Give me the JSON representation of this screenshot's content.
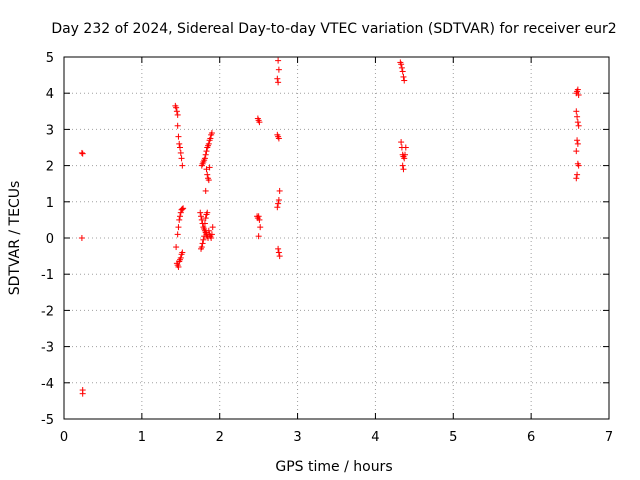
{
  "chart_data": {
    "type": "scatter",
    "title": "Day 232 of 2024, Sidereal Day-to-day VTEC variation (SDTVAR) for receiver eur2",
    "xlabel": "GPS time / hours",
    "ylabel": "SDTVAR / TECUs",
    "xlim": [
      0,
      7
    ],
    "ylim": [
      -5,
      5
    ],
    "xticks": [
      "0",
      "1",
      "2",
      "3",
      "4",
      "5",
      "6",
      "7"
    ],
    "yticks": [
      "-5",
      "-4",
      "-3",
      "-2",
      "-1",
      "0",
      "1",
      "2",
      "3",
      "4",
      "5"
    ],
    "grid": true,
    "marker": "+",
    "color": "#ff0000",
    "series": [
      {
        "name": "SDTVAR",
        "points": [
          [
            0.23,
            2.35
          ],
          [
            0.24,
            2.33
          ],
          [
            0.23,
            0.0
          ],
          [
            0.24,
            -4.2
          ],
          [
            0.24,
            -4.3
          ],
          [
            1.43,
            3.65
          ],
          [
            1.44,
            3.6
          ],
          [
            1.45,
            3.5
          ],
          [
            1.46,
            3.4
          ],
          [
            1.46,
            3.1
          ],
          [
            1.47,
            2.8
          ],
          [
            1.48,
            2.6
          ],
          [
            1.49,
            2.5
          ],
          [
            1.5,
            2.35
          ],
          [
            1.51,
            2.2
          ],
          [
            1.52,
            2.0
          ],
          [
            1.44,
            -0.25
          ],
          [
            1.45,
            -0.7
          ],
          [
            1.46,
            -0.75
          ],
          [
            1.47,
            -0.8
          ],
          [
            1.48,
            -0.65
          ],
          [
            1.49,
            -0.6
          ],
          [
            1.5,
            -0.55
          ],
          [
            1.51,
            -0.45
          ],
          [
            1.52,
            -0.4
          ],
          [
            1.46,
            0.1
          ],
          [
            1.47,
            0.3
          ],
          [
            1.48,
            0.5
          ],
          [
            1.49,
            0.6
          ],
          [
            1.5,
            0.7
          ],
          [
            1.51,
            0.78
          ],
          [
            1.52,
            0.8
          ],
          [
            1.53,
            0.82
          ],
          [
            1.75,
            0.7
          ],
          [
            1.76,
            0.6
          ],
          [
            1.77,
            0.5
          ],
          [
            1.78,
            0.4
          ],
          [
            1.79,
            0.3
          ],
          [
            1.8,
            0.25
          ],
          [
            1.81,
            0.2
          ],
          [
            1.82,
            0.15
          ],
          [
            1.83,
            0.1
          ],
          [
            1.84,
            0.05
          ],
          [
            1.85,
            0.0
          ],
          [
            1.76,
            -0.3
          ],
          [
            1.77,
            -0.25
          ],
          [
            1.78,
            -0.15
          ],
          [
            1.79,
            -0.05
          ],
          [
            1.8,
            0.05
          ],
          [
            1.81,
            0.4
          ],
          [
            1.82,
            0.55
          ],
          [
            1.83,
            0.65
          ],
          [
            1.84,
            0.7
          ],
          [
            1.86,
            0.2
          ],
          [
            1.87,
            0.1
          ],
          [
            1.88,
            0.05
          ],
          [
            1.89,
            0.0
          ],
          [
            1.9,
            0.1
          ],
          [
            1.91,
            0.3
          ],
          [
            1.77,
            2.0
          ],
          [
            1.78,
            2.05
          ],
          [
            1.79,
            2.1
          ],
          [
            1.8,
            2.15
          ],
          [
            1.81,
            2.2
          ],
          [
            1.82,
            2.3
          ],
          [
            1.83,
            2.4
          ],
          [
            1.84,
            2.5
          ],
          [
            1.85,
            2.55
          ],
          [
            1.86,
            2.6
          ],
          [
            1.87,
            2.7
          ],
          [
            1.88,
            2.75
          ],
          [
            1.89,
            2.85
          ],
          [
            1.9,
            2.9
          ],
          [
            1.83,
            1.9
          ],
          [
            1.84,
            1.75
          ],
          [
            1.85,
            1.65
          ],
          [
            1.86,
            1.6
          ],
          [
            1.87,
            1.95
          ],
          [
            1.82,
            1.3
          ],
          [
            2.49,
            3.3
          ],
          [
            2.5,
            3.25
          ],
          [
            2.51,
            3.2
          ],
          [
            2.48,
            0.6
          ],
          [
            2.49,
            0.55
          ],
          [
            2.5,
            0.6
          ],
          [
            2.51,
            0.5
          ],
          [
            2.52,
            0.3
          ],
          [
            2.5,
            0.05
          ],
          [
            2.75,
            4.9
          ],
          [
            2.76,
            4.65
          ],
          [
            2.74,
            4.4
          ],
          [
            2.75,
            4.3
          ],
          [
            2.74,
            2.85
          ],
          [
            2.75,
            2.8
          ],
          [
            2.76,
            2.75
          ],
          [
            2.74,
            0.85
          ],
          [
            2.75,
            0.95
          ],
          [
            2.76,
            1.05
          ],
          [
            2.77,
            1.3
          ],
          [
            2.75,
            -0.3
          ],
          [
            2.76,
            -0.4
          ],
          [
            2.77,
            -0.5
          ],
          [
            4.32,
            4.85
          ],
          [
            4.33,
            4.8
          ],
          [
            4.34,
            4.7
          ],
          [
            4.35,
            4.6
          ],
          [
            4.36,
            4.45
          ],
          [
            4.37,
            4.35
          ],
          [
            4.33,
            2.65
          ],
          [
            4.34,
            2.5
          ],
          [
            4.35,
            2.3
          ],
          [
            4.36,
            2.25
          ],
          [
            4.37,
            2.2
          ],
          [
            4.38,
            2.3
          ],
          [
            4.39,
            2.5
          ],
          [
            4.35,
            2.0
          ],
          [
            4.36,
            1.9
          ],
          [
            6.58,
            3.5
          ],
          [
            6.59,
            3.35
          ],
          [
            6.6,
            3.2
          ],
          [
            6.61,
            3.1
          ],
          [
            6.58,
            4.0
          ],
          [
            6.59,
            4.05
          ],
          [
            6.6,
            4.1
          ],
          [
            6.61,
            3.95
          ],
          [
            6.59,
            2.7
          ],
          [
            6.6,
            2.6
          ],
          [
            6.58,
            2.4
          ],
          [
            6.6,
            2.05
          ],
          [
            6.61,
            2.0
          ],
          [
            6.59,
            1.75
          ],
          [
            6.58,
            1.65
          ]
        ]
      }
    ]
  }
}
